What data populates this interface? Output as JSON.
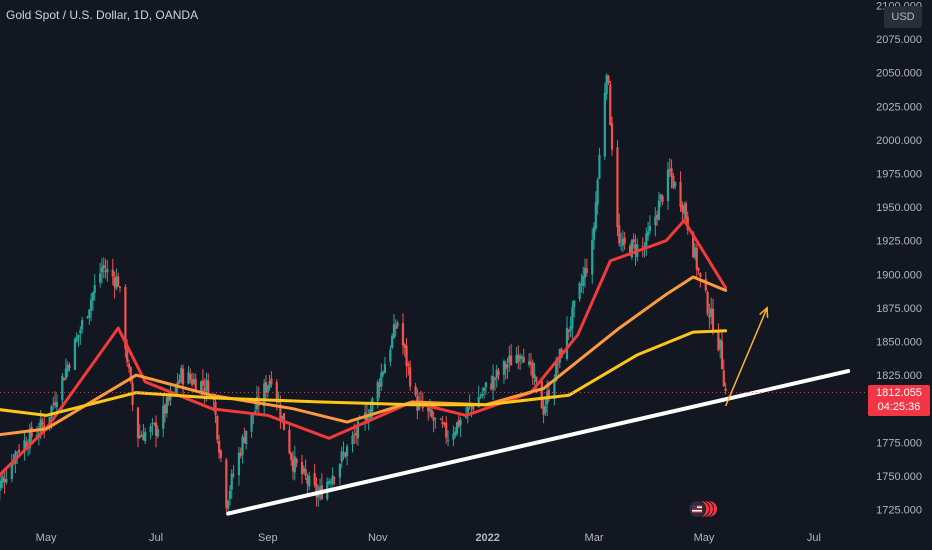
{
  "header": {
    "title": "Gold Spot / U.S. Dollar, 1D, OANDA",
    "currency_button": "USD"
  },
  "price_tag": {
    "price": "1812.055",
    "countdown": "04:25:36"
  },
  "colors": {
    "background": "#131722",
    "candle_up": "#26a69a",
    "candle_down": "#ef5350",
    "ma_fast": "#f23a3a",
    "ma_mid": "#ff9a3c",
    "ma_slow": "#ffc61a",
    "trendline": "#ffffff",
    "arrow": "#ffb22b"
  },
  "chart_data": {
    "type": "line",
    "title": "Gold Spot / U.S. Dollar, 1D, OANDA",
    "y_axis_ticks": [
      "2100.000",
      "2075.000",
      "2050.000",
      "2025.000",
      "2000.000",
      "1975.000",
      "1950.000",
      "1925.000",
      "1900.000",
      "1875.000",
      "1850.000",
      "1825.000",
      "1800.000",
      "1775.000",
      "1750.000",
      "1725.000"
    ],
    "x_axis_ticks": [
      "May",
      "Jul",
      "Sep",
      "Nov",
      "2022",
      "Mar",
      "May",
      "Jul"
    ],
    "ylim": [
      1722,
      2100
    ],
    "approx_close_path": [
      {
        "date": "2021-04-01",
        "close": 1730
      },
      {
        "date": "2021-04-15",
        "close": 1770
      },
      {
        "date": "2021-05-01",
        "close": 1790
      },
      {
        "date": "2021-05-15",
        "close": 1840
      },
      {
        "date": "2021-06-01",
        "close": 1905
      },
      {
        "date": "2021-06-10",
        "close": 1895
      },
      {
        "date": "2021-06-20",
        "close": 1780
      },
      {
        "date": "2021-07-01",
        "close": 1785
      },
      {
        "date": "2021-07-15",
        "close": 1825
      },
      {
        "date": "2021-08-01",
        "close": 1815
      },
      {
        "date": "2021-08-09",
        "close": 1732
      },
      {
        "date": "2021-08-20",
        "close": 1785
      },
      {
        "date": "2021-09-03",
        "close": 1825
      },
      {
        "date": "2021-09-15",
        "close": 1760
      },
      {
        "date": "2021-09-29",
        "close": 1735
      },
      {
        "date": "2021-10-15",
        "close": 1770
      },
      {
        "date": "2021-10-28",
        "close": 1800
      },
      {
        "date": "2021-11-12",
        "close": 1865
      },
      {
        "date": "2021-11-22",
        "close": 1805
      },
      {
        "date": "2021-12-10",
        "close": 1780
      },
      {
        "date": "2021-12-31",
        "close": 1815
      },
      {
        "date": "2022-01-20",
        "close": 1845
      },
      {
        "date": "2022-02-01",
        "close": 1800
      },
      {
        "date": "2022-02-15",
        "close": 1860
      },
      {
        "date": "2022-02-28",
        "close": 1920
      },
      {
        "date": "2022-03-08",
        "close": 2055
      },
      {
        "date": "2022-03-15",
        "close": 1920
      },
      {
        "date": "2022-03-29",
        "close": 1920
      },
      {
        "date": "2022-04-12",
        "close": 1975
      },
      {
        "date": "2022-04-20",
        "close": 1950
      },
      {
        "date": "2022-04-29",
        "close": 1895
      },
      {
        "date": "2022-05-10",
        "close": 1845
      },
      {
        "date": "2022-05-13",
        "close": 1812
      }
    ],
    "series": [
      {
        "values": [
          {
            "date": "2021-04-01",
            "value": 1745
          },
          {
            "date": "2021-05-01",
            "value": 1785
          },
          {
            "date": "2021-06-10",
            "value": 1860
          },
          {
            "date": "2021-06-25",
            "value": 1820
          },
          {
            "date": "2021-08-01",
            "value": 1800
          },
          {
            "date": "2021-09-01",
            "value": 1795
          },
          {
            "date": "2021-10-05",
            "value": 1778
          },
          {
            "date": "2021-11-20",
            "value": 1805
          },
          {
            "date": "2021-12-20",
            "value": 1795
          },
          {
            "date": "2022-01-25",
            "value": 1812
          },
          {
            "date": "2022-02-20",
            "value": 1855
          },
          {
            "date": "2022-03-10",
            "value": 1910
          },
          {
            "date": "2022-04-10",
            "value": 1925
          },
          {
            "date": "2022-04-20",
            "value": 1940
          },
          {
            "date": "2022-05-13",
            "value": 1890
          }
        ]
      },
      {
        "values": [
          {
            "date": "2021-04-01",
            "value": 1780
          },
          {
            "date": "2021-05-01",
            "value": 1785
          },
          {
            "date": "2021-06-20",
            "value": 1825
          },
          {
            "date": "2021-08-01",
            "value": 1810
          },
          {
            "date": "2021-09-15",
            "value": 1800
          },
          {
            "date": "2021-10-15",
            "value": 1790
          },
          {
            "date": "2021-11-20",
            "value": 1805
          },
          {
            "date": "2021-12-31",
            "value": 1803
          },
          {
            "date": "2022-02-01",
            "value": 1815
          },
          {
            "date": "2022-03-15",
            "value": 1860
          },
          {
            "date": "2022-04-10",
            "value": 1885
          },
          {
            "date": "2022-04-25",
            "value": 1898
          },
          {
            "date": "2022-05-13",
            "value": 1888
          }
        ]
      },
      {
        "values": [
          {
            "date": "2021-04-01",
            "value": 1800
          },
          {
            "date": "2021-05-01",
            "value": 1795
          },
          {
            "date": "2021-06-20",
            "value": 1812
          },
          {
            "date": "2021-08-01",
            "value": 1808
          },
          {
            "date": "2021-10-01",
            "value": 1805
          },
          {
            "date": "2021-11-20",
            "value": 1803
          },
          {
            "date": "2021-12-31",
            "value": 1803
          },
          {
            "date": "2022-02-15",
            "value": 1810
          },
          {
            "date": "2022-03-25",
            "value": 1840
          },
          {
            "date": "2022-04-25",
            "value": 1857
          },
          {
            "date": "2022-05-13",
            "value": 1858
          }
        ]
      }
    ],
    "annotations": [
      {
        "type": "trendline",
        "from": {
          "date": "2021-08-10",
          "value": 1722
        },
        "to": {
          "date": "2022-07-20",
          "value": 1828
        }
      },
      {
        "type": "arrow",
        "from": {
          "date": "2022-05-13",
          "value": 1802
        },
        "to": {
          "date": "2022-06-05",
          "value": 1875
        }
      }
    ],
    "grid": false,
    "legend": "none"
  }
}
